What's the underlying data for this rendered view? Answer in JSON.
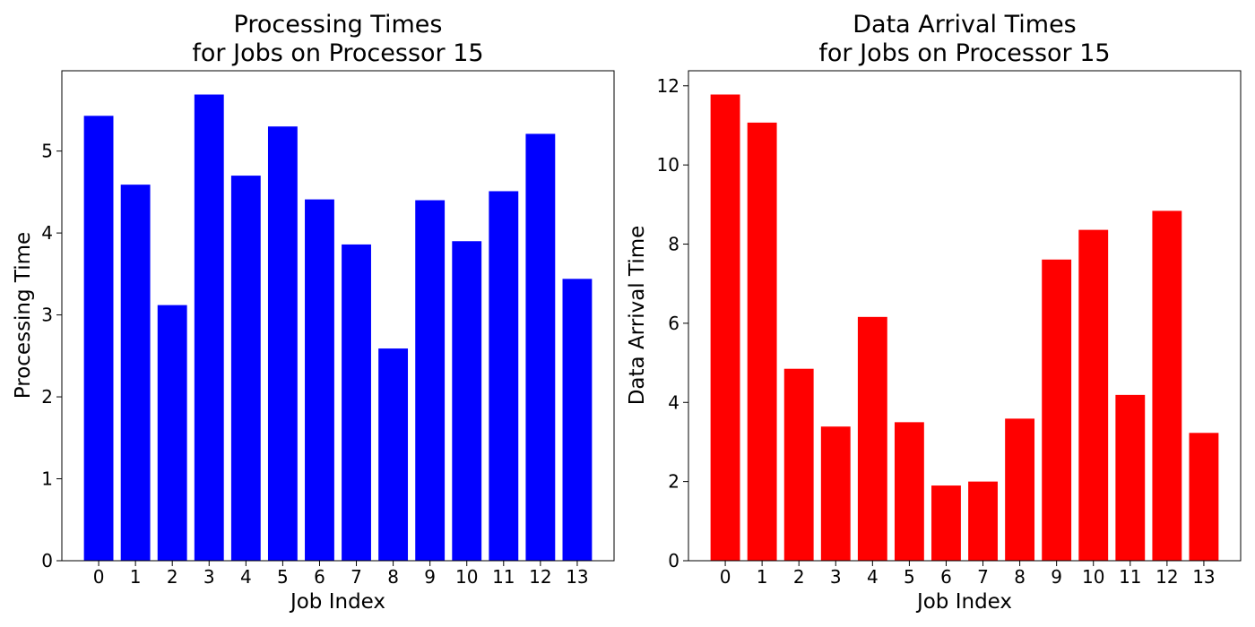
{
  "chart_data": [
    {
      "type": "bar",
      "title_line1": "Processing Times",
      "title_line2": "for Jobs on Processor 15",
      "xlabel": "Job Index",
      "ylabel": "Processing Time",
      "categories": [
        "0",
        "1",
        "2",
        "3",
        "4",
        "5",
        "6",
        "7",
        "8",
        "9",
        "10",
        "11",
        "12",
        "13"
      ],
      "values": [
        5.43,
        4.59,
        3.12,
        5.69,
        4.7,
        5.3,
        4.41,
        3.86,
        2.59,
        4.4,
        3.9,
        4.51,
        5.21,
        3.44
      ],
      "yticks": [
        0,
        1,
        2,
        3,
        4,
        5
      ],
      "ylim": [
        0,
        5.98
      ],
      "color": "#0000ff",
      "grid": false
    },
    {
      "type": "bar",
      "title_line1": "Data Arrival Times",
      "title_line2": "for Jobs on Processor 15",
      "xlabel": "Job Index",
      "ylabel": "Data Arrival Time",
      "categories": [
        "0",
        "1",
        "2",
        "3",
        "4",
        "5",
        "6",
        "7",
        "8",
        "9",
        "10",
        "11",
        "12",
        "13"
      ],
      "values": [
        11.78,
        11.07,
        4.85,
        3.39,
        6.16,
        3.5,
        1.9,
        2.0,
        3.59,
        7.61,
        8.36,
        4.19,
        8.84,
        3.23
      ],
      "yticks": [
        0,
        2,
        4,
        6,
        8,
        10,
        12
      ],
      "ylim": [
        0,
        12.38
      ],
      "color": "#ff0000",
      "grid": false
    }
  ]
}
